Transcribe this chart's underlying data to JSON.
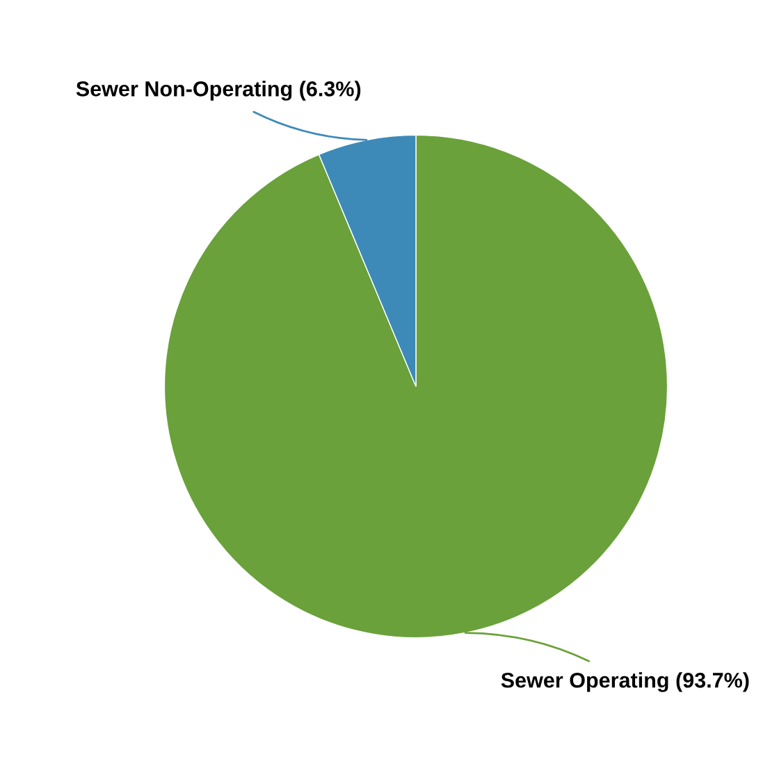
{
  "chart_data": {
    "type": "pie",
    "categories": [
      "Sewer Operating (93.7%)",
      "Sewer Non-Operating (6.3%)"
    ],
    "values": [
      93.7,
      6.3
    ],
    "colors": [
      "#6aa13a",
      "#3d8ab8"
    ],
    "legend": false
  }
}
